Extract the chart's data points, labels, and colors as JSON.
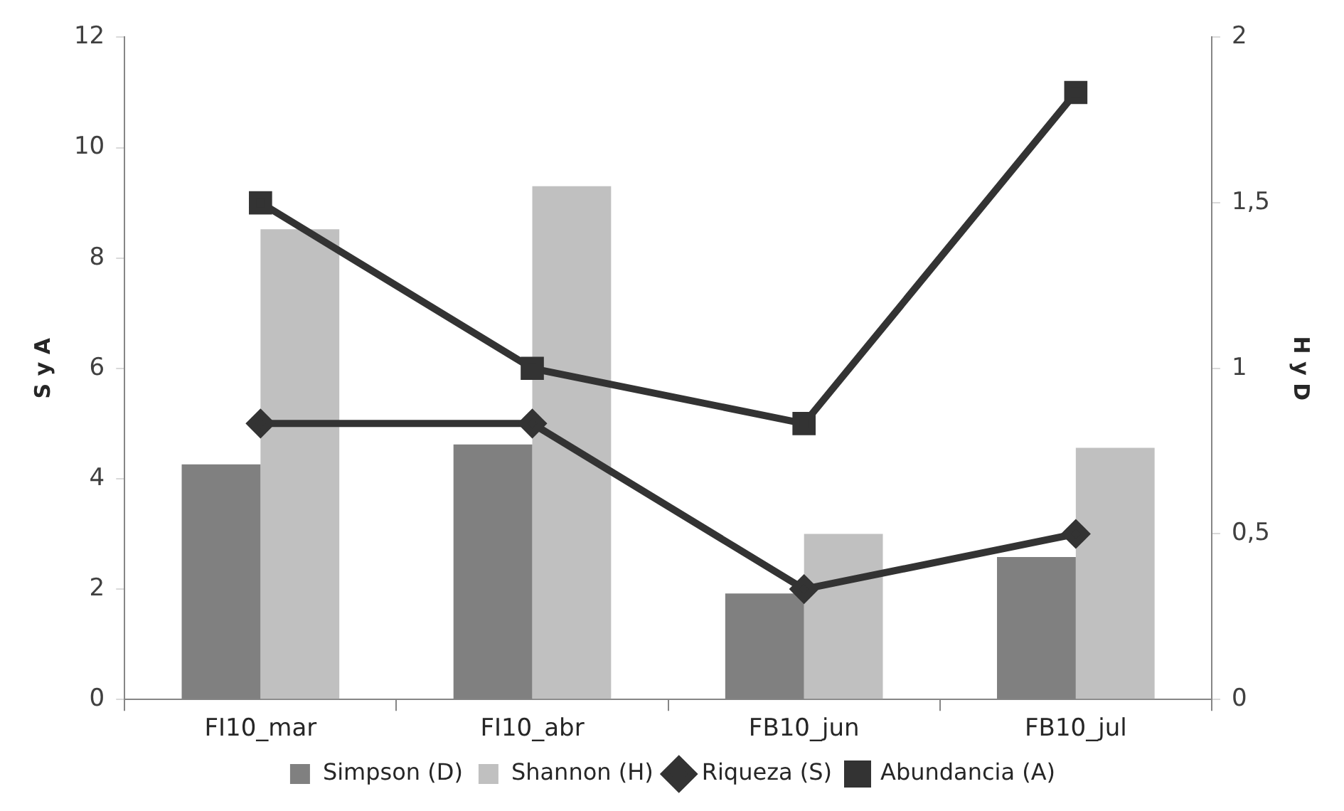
{
  "chart_data": {
    "type": "bar",
    "categories": [
      "FI10_mar",
      "FI10_abr",
      "FB10_jun",
      "FB10_jul"
    ],
    "ylabel": "S y A",
    "y2label": "H y D",
    "series": [
      {
        "name": "Simpson (D)",
        "axis": "y2",
        "color": "#808080",
        "values": [
          0.71,
          0.77,
          0.32,
          0.43
        ]
      },
      {
        "name": "Shannon (H)",
        "axis": "y2",
        "color": "#c0c0c0",
        "values": [
          1.42,
          1.55,
          0.5,
          0.76
        ]
      },
      {
        "name": "Riqueza (S)",
        "type": "line",
        "axis": "y",
        "color": "#333333",
        "marker": "diamond",
        "values": [
          5,
          5,
          2,
          3
        ]
      },
      {
        "name": "Abundancia (A)",
        "type": "line",
        "axis": "y",
        "color": "#333333",
        "marker": "square",
        "values": [
          9,
          6,
          5,
          11
        ]
      }
    ],
    "ylim": [
      0,
      12
    ],
    "yticks": [
      0,
      2,
      4,
      6,
      8,
      10,
      12
    ],
    "y2lim": [
      0,
      2
    ],
    "y2ticks": [
      0,
      {
        "value": 0.5,
        "label": "0,5"
      },
      1,
      {
        "value": 1.5,
        "label": "1,5"
      },
      2
    ],
    "grid": false,
    "legend": "bottom"
  }
}
